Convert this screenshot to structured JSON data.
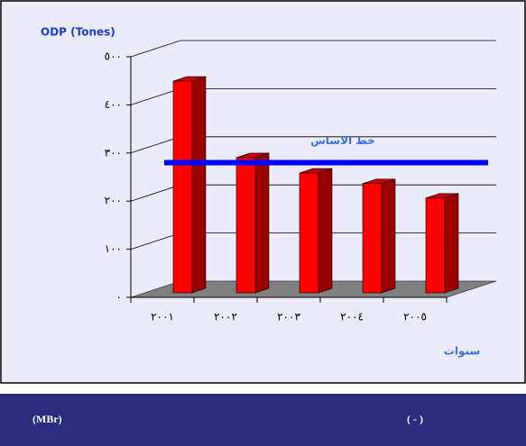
{
  "chart_data": {
    "type": "bar3d",
    "y_label": "ODP (Tones)",
    "x_label": "سنوات",
    "categories": [
      "٢٠٠١",
      "٢٠٠٢",
      "٢٠٠٣",
      "٢٠٠٤",
      "٢٠٠٥"
    ],
    "values": [
      440,
      281,
      249,
      227,
      197
    ],
    "color": "#ff0000",
    "ylim": [
      0,
      500
    ],
    "yticks": [
      {
        "value": 0,
        "label": "٠"
      },
      {
        "value": 100,
        "label": "١٠٠"
      },
      {
        "value": 200,
        "label": "٢٠٠"
      },
      {
        "value": 300,
        "label": "٣٠٠"
      },
      {
        "value": 400,
        "label": "٤٠٠"
      },
      {
        "value": 500,
        "label": "٥٠٠"
      }
    ],
    "grid": true,
    "reference_line": {
      "label": "خط الاساس",
      "value": 280,
      "color": "#0000ff"
    }
  },
  "caption": {
    "left": "(MBr)",
    "right": "( - )"
  }
}
